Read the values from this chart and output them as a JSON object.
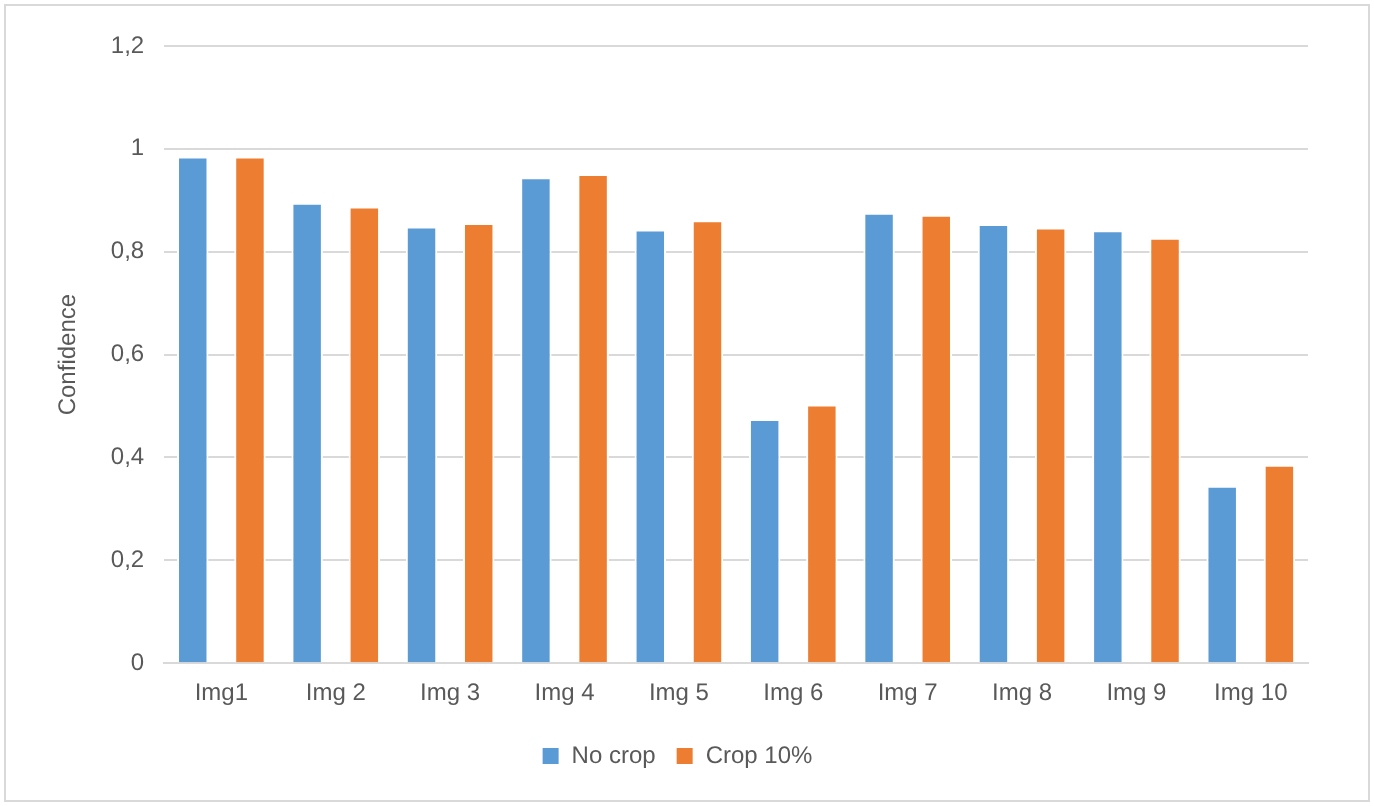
{
  "chart_data": {
    "type": "bar",
    "ylabel": "Confidence",
    "categories": [
      "Img1",
      "Img 2",
      "Img 3",
      "Img 4",
      "Img 5",
      "Img 6",
      "Img 7",
      "Img 8",
      "Img 9",
      "Img 10"
    ],
    "series": [
      {
        "name": "No crop",
        "color": "#5b9bd5",
        "values": [
          0.985,
          0.895,
          0.849,
          0.945,
          0.843,
          0.475,
          0.876,
          0.854,
          0.842,
          0.345
        ]
      },
      {
        "name": "Crop 10%",
        "color": "#ed7d31",
        "values": [
          0.985,
          0.888,
          0.856,
          0.951,
          0.861,
          0.503,
          0.872,
          0.847,
          0.827,
          0.386
        ]
      }
    ],
    "ylim": [
      0,
      1.2
    ],
    "yticks": [
      0,
      {
        "value": 0.2,
        "label": "0,2"
      },
      {
        "value": 0.4,
        "label": "0,4"
      },
      {
        "value": 0.6,
        "label": "0,6"
      },
      {
        "value": 0.8,
        "label": "0,8"
      },
      1,
      {
        "value": 1.2,
        "label": "1,2"
      }
    ],
    "grid": "y",
    "legend": "bottom"
  }
}
